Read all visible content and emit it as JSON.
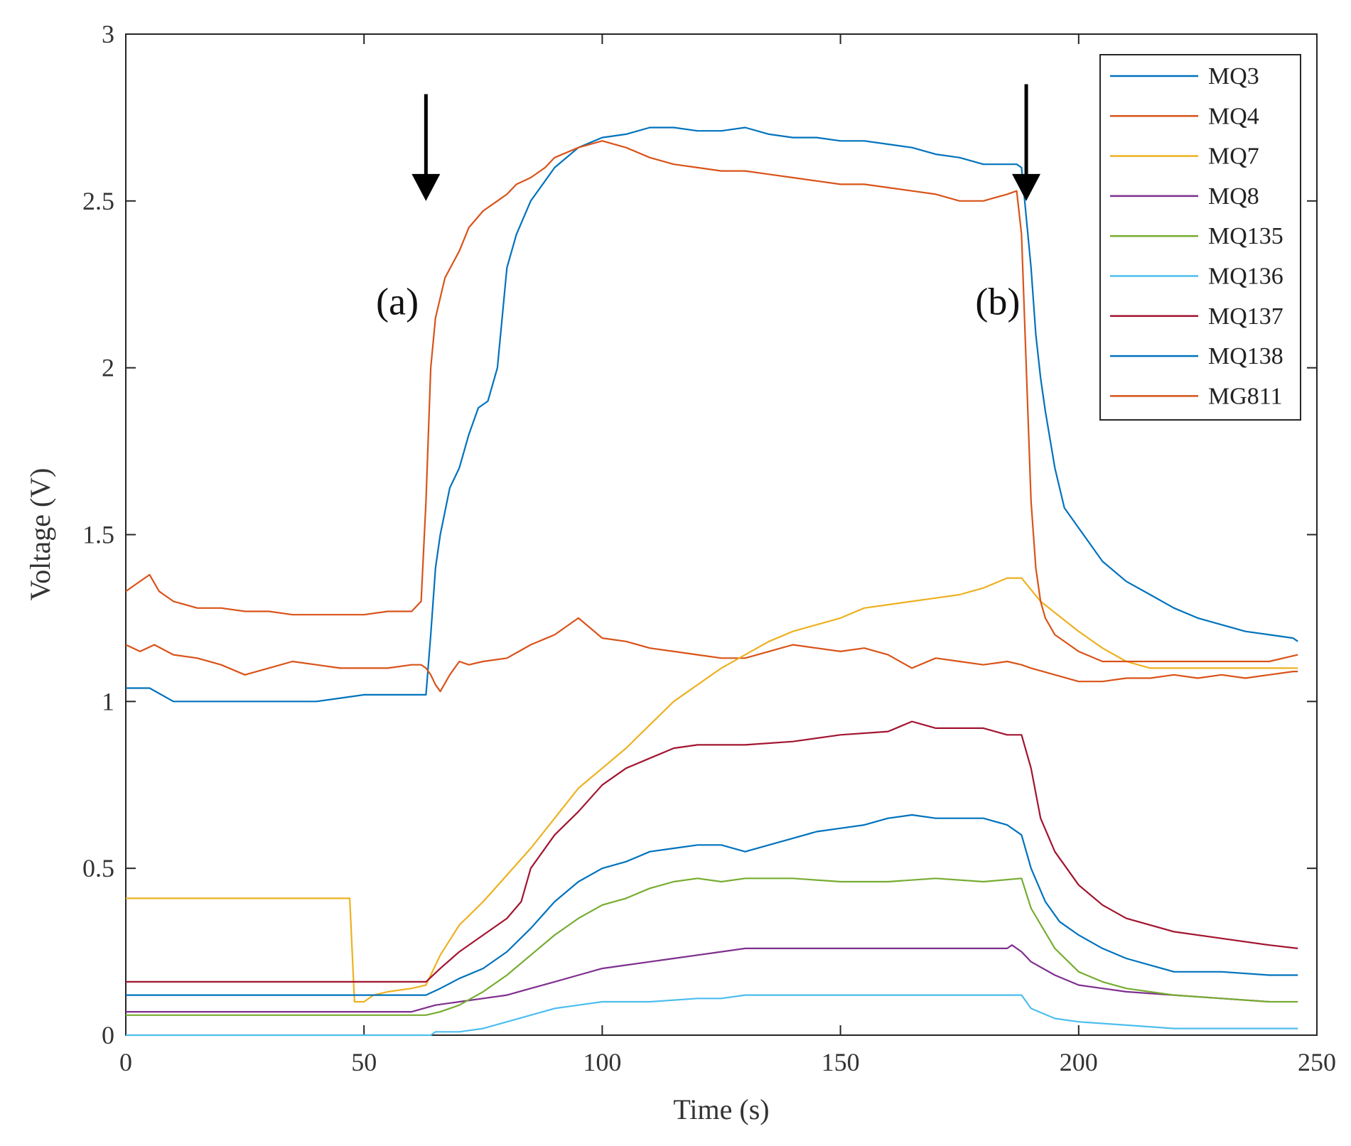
{
  "chart_data": {
    "type": "line",
    "title": "",
    "xlabel": "Time (s)",
    "ylabel": "Voltage (V)",
    "xlim": [
      0,
      250
    ],
    "ylim": [
      0,
      3
    ],
    "xticks": [
      0,
      50,
      100,
      150,
      200,
      250
    ],
    "xtick_labels": [
      "0",
      "50",
      "100",
      "150",
      "200",
      "250"
    ],
    "yticks": [
      0,
      0.5,
      1,
      1.5,
      2,
      2.5,
      3
    ],
    "ytick_labels": [
      "0",
      "0.5",
      "1",
      "1.5",
      "2",
      "2.5",
      "3"
    ],
    "grid": false,
    "legend_position": "top-right",
    "annotations": [
      {
        "label": "(a)",
        "x": 57,
        "y": 2.16,
        "arrow_x": 63,
        "arrow_from": 2.82,
        "arrow_to": 2.5
      },
      {
        "label": "(b)",
        "x": 183,
        "y": 2.16,
        "arrow_x": 189,
        "arrow_from": 2.85,
        "arrow_to": 2.5
      }
    ],
    "series": [
      {
        "name": "MQ3",
        "color": "#0072BD",
        "x": [
          0,
          3,
          5,
          10,
          20,
          40,
          45,
          50,
          55,
          60,
          62,
          63,
          64,
          65,
          66,
          68,
          70,
          72,
          74,
          76,
          78,
          80,
          82,
          85,
          88,
          90,
          95,
          100,
          105,
          110,
          115,
          120,
          125,
          130,
          135,
          140,
          145,
          150,
          155,
          160,
          165,
          170,
          175,
          180,
          185,
          187,
          188,
          189,
          190,
          191,
          192,
          193,
          195,
          197,
          200,
          205,
          210,
          215,
          220,
          225,
          230,
          235,
          240,
          245,
          246
        ],
        "y": [
          1.04,
          1.04,
          1.04,
          1.0,
          1.0,
          1.0,
          1.01,
          1.02,
          1.02,
          1.02,
          1.02,
          1.02,
          1.2,
          1.4,
          1.5,
          1.64,
          1.7,
          1.8,
          1.88,
          1.9,
          2.0,
          2.3,
          2.4,
          2.5,
          2.56,
          2.6,
          2.66,
          2.69,
          2.7,
          2.72,
          2.72,
          2.71,
          2.71,
          2.72,
          2.7,
          2.69,
          2.69,
          2.68,
          2.68,
          2.67,
          2.66,
          2.64,
          2.63,
          2.61,
          2.61,
          2.61,
          2.6,
          2.45,
          2.3,
          2.1,
          1.97,
          1.87,
          1.7,
          1.58,
          1.52,
          1.42,
          1.36,
          1.32,
          1.28,
          1.25,
          1.23,
          1.21,
          1.2,
          1.19,
          1.18
        ]
      },
      {
        "name": "MQ4",
        "color": "#D95319",
        "x": [
          0,
          3,
          6,
          10,
          15,
          20,
          25,
          30,
          35,
          40,
          45,
          50,
          55,
          60,
          62,
          63,
          64,
          65,
          66,
          68,
          70,
          72,
          75,
          80,
          85,
          90,
          95,
          100,
          105,
          110,
          115,
          120,
          125,
          130,
          135,
          140,
          145,
          150,
          155,
          160,
          165,
          170,
          175,
          180,
          185,
          188,
          190,
          195,
          200,
          205,
          210,
          215,
          220,
          225,
          230,
          235,
          240,
          245,
          246
        ],
        "y": [
          1.17,
          1.15,
          1.17,
          1.14,
          1.13,
          1.11,
          1.08,
          1.1,
          1.12,
          1.11,
          1.1,
          1.1,
          1.1,
          1.11,
          1.11,
          1.1,
          1.08,
          1.05,
          1.03,
          1.08,
          1.12,
          1.11,
          1.12,
          1.13,
          1.17,
          1.2,
          1.25,
          1.19,
          1.18,
          1.16,
          1.15,
          1.14,
          1.13,
          1.13,
          1.15,
          1.17,
          1.16,
          1.15,
          1.16,
          1.14,
          1.1,
          1.13,
          1.12,
          1.11,
          1.12,
          1.11,
          1.1,
          1.08,
          1.06,
          1.06,
          1.07,
          1.07,
          1.08,
          1.07,
          1.08,
          1.07,
          1.08,
          1.09,
          1.09
        ]
      },
      {
        "name": "MQ7",
        "color": "#EDB120",
        "x": [
          0,
          47,
          48,
          50,
          52,
          55,
          60,
          63,
          66,
          70,
          75,
          80,
          85,
          90,
          95,
          100,
          105,
          110,
          115,
          120,
          125,
          130,
          135,
          140,
          145,
          150,
          155,
          160,
          165,
          170,
          175,
          180,
          185,
          188,
          192,
          200,
          205,
          210,
          215,
          220,
          230,
          240,
          246
        ],
        "y": [
          0.41,
          0.41,
          0.1,
          0.1,
          0.12,
          0.13,
          0.14,
          0.15,
          0.24,
          0.33,
          0.4,
          0.48,
          0.56,
          0.65,
          0.74,
          0.8,
          0.86,
          0.93,
          1.0,
          1.05,
          1.1,
          1.14,
          1.18,
          1.21,
          1.23,
          1.25,
          1.28,
          1.29,
          1.3,
          1.31,
          1.32,
          1.34,
          1.37,
          1.37,
          1.3,
          1.21,
          1.16,
          1.12,
          1.1,
          1.1,
          1.1,
          1.1,
          1.1
        ]
      },
      {
        "name": "MQ8",
        "color": "#7E2F8E",
        "x": [
          0,
          10,
          20,
          30,
          40,
          50,
          55,
          60,
          65,
          70,
          75,
          80,
          85,
          90,
          95,
          100,
          105,
          110,
          115,
          120,
          125,
          130,
          140,
          150,
          160,
          170,
          180,
          185,
          186,
          188,
          190,
          195,
          200,
          205,
          210,
          220,
          230,
          240
        ],
        "y": [
          0.07,
          0.07,
          0.07,
          0.07,
          0.07,
          0.07,
          0.07,
          0.07,
          0.09,
          0.1,
          0.11,
          0.12,
          0.14,
          0.16,
          0.18,
          0.2,
          0.21,
          0.22,
          0.23,
          0.24,
          0.25,
          0.26,
          0.26,
          0.26,
          0.26,
          0.26,
          0.26,
          0.26,
          0.27,
          0.25,
          0.22,
          0.18,
          0.15,
          0.14,
          0.13,
          0.12,
          0.11,
          0.1
        ]
      },
      {
        "name": "MQ135",
        "color": "#77AC30",
        "x": [
          0,
          20,
          40,
          60,
          63,
          66,
          70,
          75,
          80,
          85,
          90,
          95,
          100,
          105,
          110,
          115,
          120,
          125,
          130,
          140,
          150,
          160,
          170,
          180,
          188,
          190,
          195,
          200,
          205,
          210,
          220,
          230,
          240,
          246
        ],
        "y": [
          0.06,
          0.06,
          0.06,
          0.06,
          0.06,
          0.07,
          0.09,
          0.13,
          0.18,
          0.24,
          0.3,
          0.35,
          0.39,
          0.41,
          0.44,
          0.46,
          0.47,
          0.46,
          0.47,
          0.47,
          0.46,
          0.46,
          0.47,
          0.46,
          0.47,
          0.38,
          0.26,
          0.19,
          0.16,
          0.14,
          0.12,
          0.11,
          0.1,
          0.1
        ]
      },
      {
        "name": "MQ136",
        "color": "#4DBEEE",
        "x": [
          0,
          20,
          40,
          60,
          64,
          65,
          70,
          75,
          80,
          85,
          90,
          95,
          100,
          110,
          120,
          125,
          130,
          140,
          150,
          160,
          170,
          180,
          188,
          190,
          195,
          200,
          210,
          220,
          230,
          246
        ],
        "y": [
          0.0,
          0.0,
          0.0,
          0.0,
          0.0,
          0.01,
          0.01,
          0.02,
          0.04,
          0.06,
          0.08,
          0.09,
          0.1,
          0.1,
          0.11,
          0.11,
          0.12,
          0.12,
          0.12,
          0.12,
          0.12,
          0.12,
          0.12,
          0.08,
          0.05,
          0.04,
          0.03,
          0.02,
          0.02,
          0.02
        ]
      },
      {
        "name": "MQ137",
        "color": "#A2142F",
        "x": [
          0,
          20,
          40,
          60,
          63,
          66,
          70,
          75,
          80,
          83,
          85,
          90,
          95,
          100,
          105,
          110,
          115,
          120,
          130,
          140,
          150,
          160,
          165,
          170,
          180,
          185,
          188,
          190,
          192,
          195,
          200,
          205,
          210,
          220,
          230,
          240,
          246
        ],
        "y": [
          0.16,
          0.16,
          0.16,
          0.16,
          0.16,
          0.2,
          0.25,
          0.3,
          0.35,
          0.4,
          0.5,
          0.6,
          0.67,
          0.75,
          0.8,
          0.83,
          0.86,
          0.87,
          0.87,
          0.88,
          0.9,
          0.91,
          0.94,
          0.92,
          0.92,
          0.9,
          0.9,
          0.8,
          0.65,
          0.55,
          0.45,
          0.39,
          0.35,
          0.31,
          0.29,
          0.27,
          0.26
        ]
      },
      {
        "name": "MQ138",
        "color": "#0072BD",
        "x": [
          0,
          20,
          40,
          60,
          63,
          66,
          70,
          75,
          80,
          85,
          90,
          95,
          100,
          105,
          110,
          115,
          120,
          125,
          130,
          135,
          140,
          145,
          150,
          155,
          160,
          165,
          170,
          175,
          180,
          185,
          188,
          190,
          193,
          196,
          200,
          205,
          210,
          215,
          220,
          230,
          240,
          246
        ],
        "y": [
          0.12,
          0.12,
          0.12,
          0.12,
          0.12,
          0.14,
          0.17,
          0.2,
          0.25,
          0.32,
          0.4,
          0.46,
          0.5,
          0.52,
          0.55,
          0.56,
          0.57,
          0.57,
          0.55,
          0.57,
          0.59,
          0.61,
          0.62,
          0.63,
          0.65,
          0.66,
          0.65,
          0.65,
          0.65,
          0.63,
          0.6,
          0.5,
          0.4,
          0.34,
          0.3,
          0.26,
          0.23,
          0.21,
          0.19,
          0.19,
          0.18,
          0.18
        ]
      },
      {
        "name": "MG811",
        "color": "#D95319",
        "x": [
          0,
          2,
          5,
          7,
          10,
          15,
          20,
          25,
          30,
          35,
          40,
          45,
          50,
          55,
          60,
          62,
          63,
          64,
          65,
          67,
          70,
          72,
          75,
          78,
          80,
          82,
          85,
          88,
          90,
          95,
          100,
          105,
          110,
          115,
          120,
          125,
          130,
          135,
          140,
          145,
          150,
          155,
          160,
          165,
          170,
          175,
          180,
          185,
          187,
          188,
          189,
          190,
          191,
          192,
          193,
          195,
          200,
          205,
          210,
          220,
          230,
          240,
          246
        ],
        "y": [
          1.33,
          1.35,
          1.38,
          1.33,
          1.3,
          1.28,
          1.28,
          1.27,
          1.27,
          1.26,
          1.26,
          1.26,
          1.26,
          1.27,
          1.27,
          1.3,
          1.6,
          2.0,
          2.15,
          2.27,
          2.35,
          2.42,
          2.47,
          2.5,
          2.52,
          2.55,
          2.57,
          2.6,
          2.63,
          2.66,
          2.68,
          2.66,
          2.63,
          2.61,
          2.6,
          2.59,
          2.59,
          2.58,
          2.57,
          2.56,
          2.55,
          2.55,
          2.54,
          2.53,
          2.52,
          2.5,
          2.5,
          2.52,
          2.53,
          2.4,
          2.0,
          1.6,
          1.4,
          1.3,
          1.25,
          1.2,
          1.15,
          1.12,
          1.12,
          1.12,
          1.12,
          1.12,
          1.14
        ]
      }
    ]
  }
}
